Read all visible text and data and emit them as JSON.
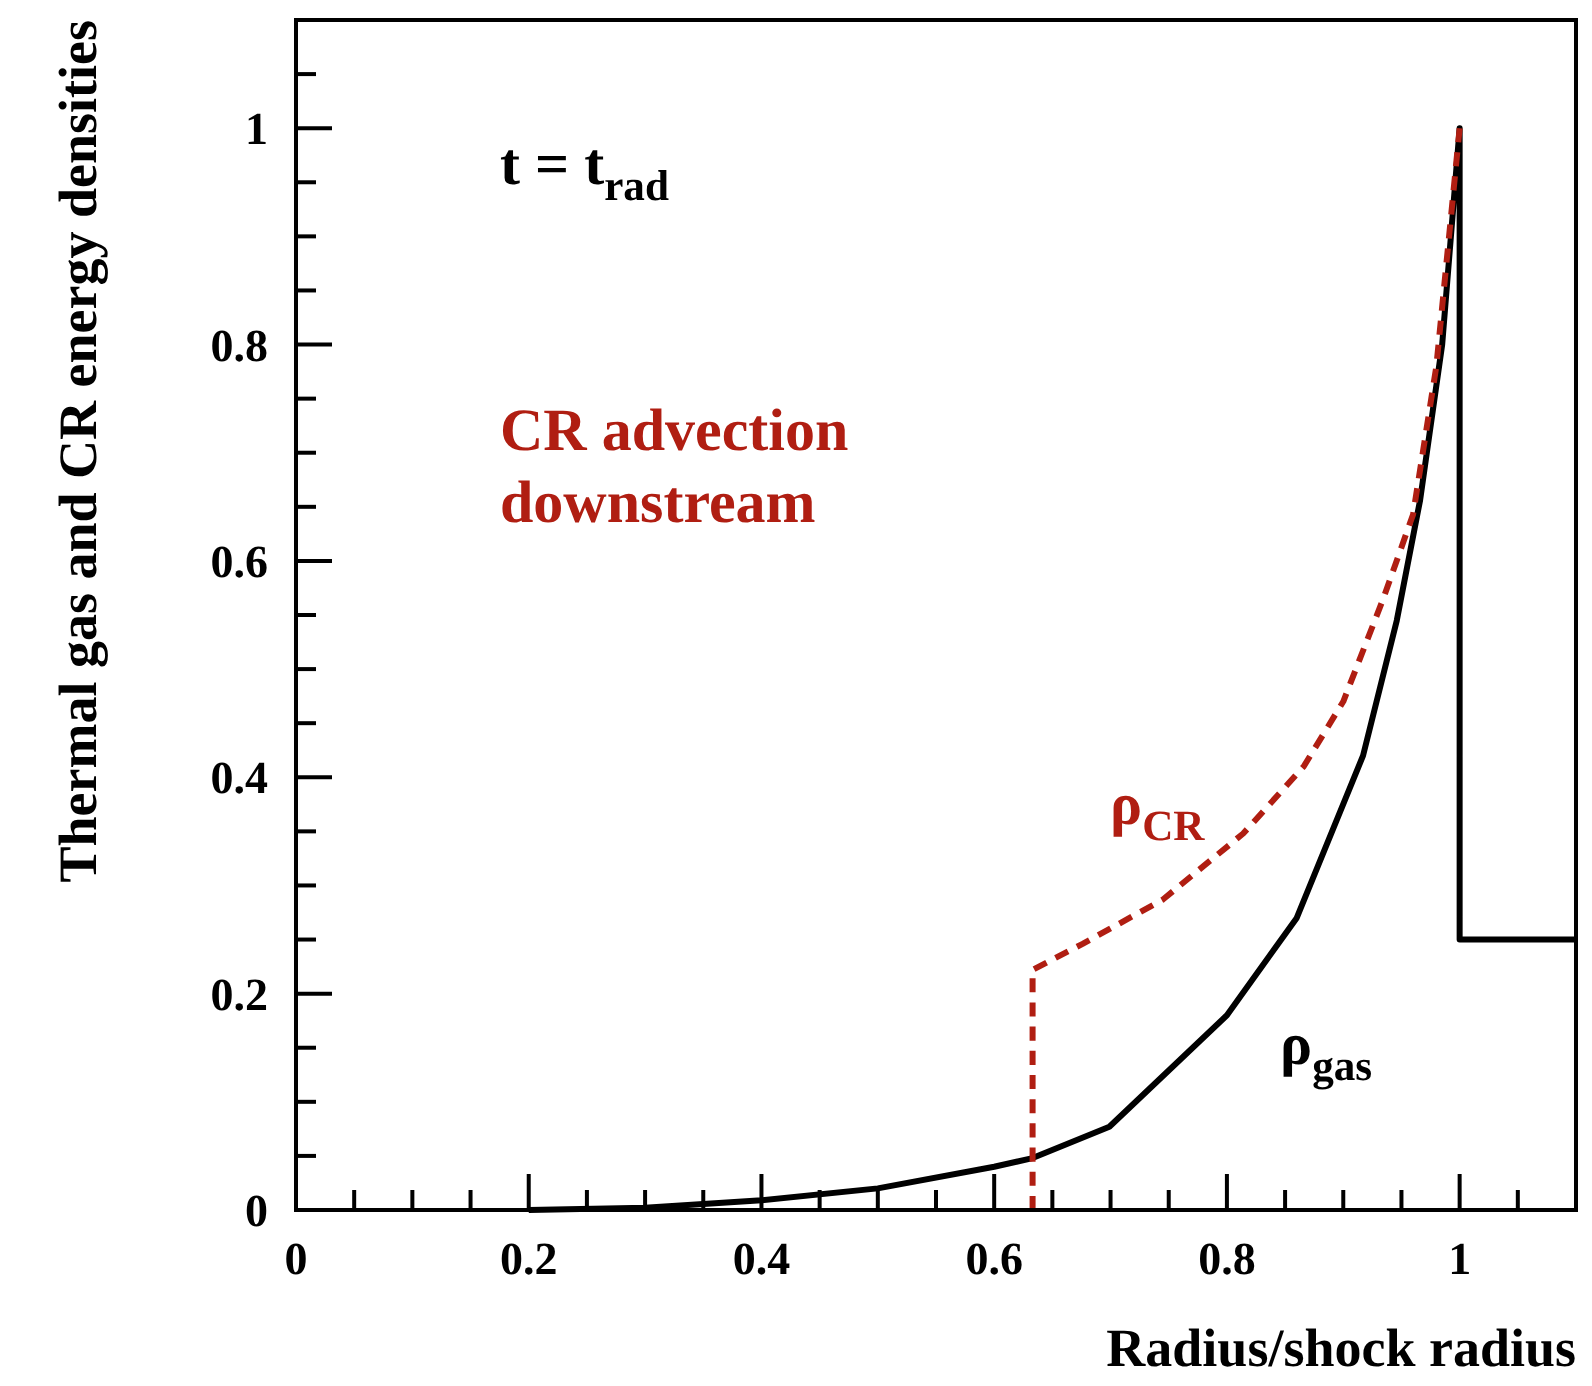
{
  "chart_data": {
    "type": "line",
    "xlabel": "Radius/shock radius",
    "ylabel": "Thermal gas and CR energy densities",
    "annotations": [
      "t = t$_{rad}$",
      "CR advection\ndownstream"
    ],
    "xlim": [
      0,
      1.1
    ],
    "ylim": [
      0,
      1.1
    ],
    "xticks": [
      0,
      {
        "value": 0.05,
        "label": null
      },
      {
        "value": 0.1,
        "label": null
      },
      {
        "value": 0.15,
        "label": null
      },
      0.2,
      {
        "value": 0.25,
        "label": null
      },
      {
        "value": 0.3,
        "label": null
      },
      {
        "value": 0.35,
        "label": null
      },
      0.4,
      {
        "value": 0.45,
        "label": null
      },
      {
        "value": 0.5,
        "label": null
      },
      {
        "value": 0.55,
        "label": null
      },
      0.6,
      {
        "value": 0.65,
        "label": null
      },
      {
        "value": 0.7,
        "label": null
      },
      {
        "value": 0.75,
        "label": null
      },
      0.8,
      {
        "value": 0.85,
        "label": null
      },
      {
        "value": 0.9,
        "label": null
      },
      {
        "value": 0.95,
        "label": null
      },
      1,
      {
        "value": 1.05,
        "label": null
      }
    ],
    "yticks": [
      0,
      {
        "value": 0.05,
        "label": null
      },
      {
        "value": 0.1,
        "label": null
      },
      {
        "value": 0.15,
        "label": null
      },
      0.2,
      {
        "value": 0.25,
        "label": null
      },
      {
        "value": 0.3,
        "label": null
      },
      {
        "value": 0.35,
        "label": null
      },
      0.4,
      {
        "value": 0.45,
        "label": null
      },
      {
        "value": 0.5,
        "label": null
      },
      {
        "value": 0.55,
        "label": null
      },
      0.6,
      {
        "value": 0.65,
        "label": null
      },
      {
        "value": 0.7,
        "label": null
      },
      {
        "value": 0.75,
        "label": null
      },
      0.8,
      {
        "value": 0.85,
        "label": null
      },
      {
        "value": 0.9,
        "label": null
      },
      {
        "value": 0.95,
        "label": null
      },
      1,
      {
        "value": 1.05,
        "label": null
      }
    ],
    "grid": false,
    "series": [
      {
        "name": "ρ$_{gas}$",
        "color": "#000000",
        "line_style": "solid",
        "x": [
          0.2,
          0.3,
          0.4,
          0.5,
          0.6,
          0.633,
          0.699,
          0.8,
          0.86,
          0.917,
          0.946,
          0.966,
          0.985,
          1,
          1,
          1.1
        ],
        "values": [
          0,
          0.002,
          0.009,
          0.02,
          0.04,
          0.048,
          0.077,
          0.18,
          0.27,
          0.42,
          0.545,
          0.656,
          0.8,
          1,
          0.25,
          0.25
        ]
      },
      {
        "name": "ρ$_{CR}$",
        "color": "#b01e12",
        "line_style": "dashed",
        "x": [
          0.633,
          0.633,
          0.676,
          0.745,
          0.814,
          0.866,
          0.9,
          0.934,
          0.96,
          0.98,
          1
        ],
        "values": [
          0,
          0.222,
          0.246,
          0.287,
          0.348,
          0.41,
          0.47,
          0.564,
          0.643,
          0.78,
          1
        ]
      }
    ]
  }
}
